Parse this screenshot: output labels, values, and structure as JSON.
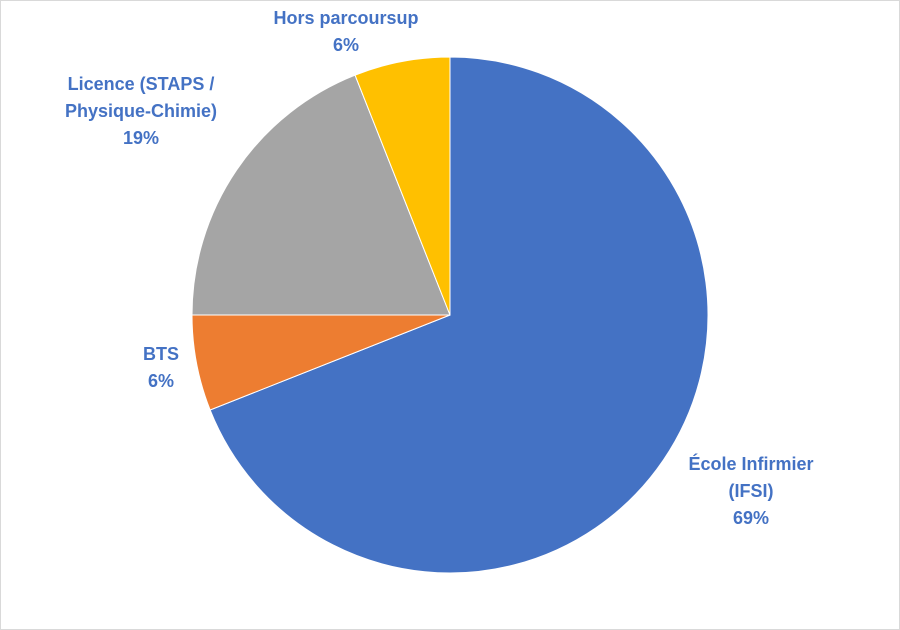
{
  "chart_data": {
    "type": "pie",
    "categories": [
      "École Infirmier (IFSI)",
      "BTS",
      "Licence (STAPS / Physique-Chimie)",
      "Hors parcoursup"
    ],
    "values": [
      69,
      6,
      19,
      6
    ],
    "value_labels": [
      "69%",
      "6%",
      "19%",
      "6%"
    ],
    "colors": [
      "#4472c4",
      "#ed7d31",
      "#a5a5a5",
      "#ffc000"
    ]
  }
}
